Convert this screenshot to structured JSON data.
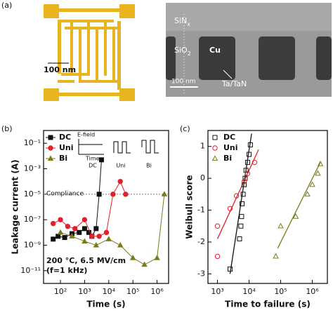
{
  "figure": {
    "panel_a": "(a)",
    "panel_b": "(b)",
    "panel_c": "(c)",
    "scale_left": "100 nm",
    "sinx": {
      "base": "SiN",
      "sub": "x"
    },
    "sio2": {
      "base": "SiO",
      "sub": "2"
    },
    "cu": "Cu",
    "tatan": "Ta/TaN",
    "scale_right": "100 nm"
  },
  "chart_data": [
    {
      "type": "line",
      "xlabel": "Time (s)",
      "ylabel": "Leakage current (A)",
      "xlog": true,
      "ylog": true,
      "xlim": [
        20,
        3000000
      ],
      "ylim": [
        1e-12,
        1
      ],
      "xticks": [
        {
          "value": 100,
          "label": "10²"
        },
        {
          "value": 1000,
          "label": "10³"
        },
        {
          "value": 10000,
          "label": "10⁴"
        },
        {
          "value": 100000,
          "label": "10⁵"
        },
        {
          "value": 1000000,
          "label": "10⁶"
        }
      ],
      "yticks": [
        {
          "value": 1e-11,
          "label": "10⁻¹¹"
        },
        {
          "value": 1e-09,
          "label": "10⁻⁹"
        },
        {
          "value": 1e-07,
          "label": "10⁻⁷"
        },
        {
          "value": 1e-05,
          "label": "10⁻⁵"
        },
        {
          "value": 0.001,
          "label": "10⁻³"
        },
        {
          "value": 0.1,
          "label": "10⁻¹"
        }
      ],
      "legend": "upper left",
      "compliance": {
        "value": 1e-05,
        "label": "Compliance"
      },
      "annotations": [
        "200 °C, 6.5 MV/cm",
        "(f=1 kHz)"
      ],
      "inset": {
        "axis": "E-field",
        "time": "Time",
        "modes": [
          "DC",
          "Uni",
          "Bi"
        ]
      },
      "series": [
        {
          "name": "DC",
          "color": "#111111",
          "marker": "square",
          "filled": true,
          "x": [
            50,
            80,
            150,
            300,
            600,
            1000,
            1500,
            2000,
            3000,
            4000,
            5000
          ],
          "values": [
            3e-09,
            5e-09,
            4e-09,
            8e-09,
            1e-08,
            2e-08,
            1e-08,
            5e-09,
            2e-08,
            1e-05,
            0.005
          ]
        },
        {
          "name": "Uni",
          "color": "#e0202a",
          "marker": "circle",
          "filled": true,
          "x": [
            50,
            100,
            200,
            400,
            1000,
            2000,
            4000,
            8000,
            15000,
            30000,
            50000
          ],
          "values": [
            5e-08,
            1e-07,
            3e-08,
            2e-08,
            1e-07,
            5e-09,
            5e-09,
            1e-08,
            1e-05,
            0.0001,
            1e-05
          ]
        },
        {
          "name": "Bi",
          "color": "#7d7a1c",
          "marker": "triangle",
          "filled": true,
          "x": [
            100,
            300,
            1000,
            3000,
            10000,
            30000,
            100000,
            300000,
            1000000,
            2000000
          ],
          "values": [
            1e-08,
            5e-09,
            2e-09,
            1e-09,
            3e-09,
            1e-09,
            1e-10,
            3e-11,
            1e-10,
            1e-05
          ]
        }
      ]
    },
    {
      "type": "scatter",
      "xlabel": "Time to failure (s)",
      "ylabel": "Weibull score",
      "xlog": true,
      "ylog": false,
      "xlim": [
        500,
        3000000
      ],
      "ylim": [
        -3.3,
        1.5
      ],
      "xticks": [
        {
          "value": 1000,
          "label": "10³"
        },
        {
          "value": 10000,
          "label": "10⁴"
        },
        {
          "value": 100000,
          "label": "10⁵"
        },
        {
          "value": 1000000,
          "label": "10⁶"
        }
      ],
      "yticks": [
        -3,
        -2,
        -1,
        0,
        1
      ],
      "legend": "upper left",
      "series": [
        {
          "name": "DC",
          "color": "#111111",
          "marker": "square",
          "filled": false,
          "x": [
            2500,
            5000,
            5500,
            5800,
            6000,
            6500,
            7000,
            7500,
            8000,
            9000,
            10000,
            11000
          ],
          "values": [
            -2.85,
            -1.9,
            -1.5,
            -1.2,
            -0.8,
            -0.5,
            -0.2,
            0,
            0.25,
            0.5,
            0.75,
            1.05
          ]
        },
        {
          "name": "Uni",
          "color": "#e0202a",
          "marker": "circle",
          "filled": false,
          "x": [
            1000,
            1000,
            2500,
            4000,
            7000,
            9000,
            15000
          ],
          "values": [
            -2.45,
            -1.5,
            -0.95,
            -0.55,
            -0.1,
            0.15,
            0.5
          ]
        },
        {
          "name": "Bi",
          "color": "#7d7a1c",
          "marker": "triangle",
          "filled": false,
          "x": [
            70000,
            100000,
            300000,
            700000,
            1000000,
            1500000,
            1800000
          ],
          "values": [
            -2.45,
            -1.5,
            -1.2,
            -0.5,
            -0.2,
            0.15,
            0.45
          ]
        }
      ],
      "fits": [
        {
          "color": "#111111",
          "x": [
            2500,
            12000
          ],
          "values": [
            -3,
            1.4
          ]
        },
        {
          "color": "#e0202a",
          "x": [
            1000,
            20000
          ],
          "values": [
            -1.9,
            0.9
          ]
        },
        {
          "color": "#7d7a1c",
          "x": [
            80000,
            1800000
          ],
          "values": [
            -2.2,
            0.5
          ]
        }
      ]
    }
  ]
}
